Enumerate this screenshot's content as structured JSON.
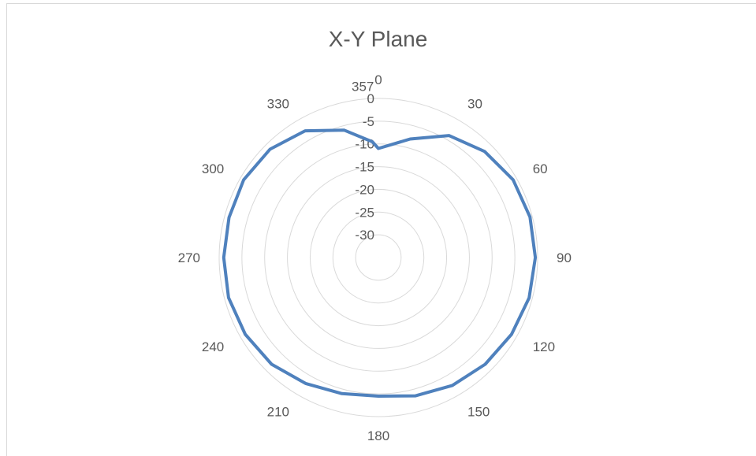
{
  "chart_data": {
    "type": "radar",
    "title": "X-Y Plane",
    "angle_labels": [
      "0",
      "30",
      "60",
      "90",
      "120",
      "150",
      "180",
      "210",
      "240",
      "270",
      "300",
      "330",
      "357"
    ],
    "angle_values": [
      0,
      30,
      60,
      90,
      120,
      150,
      180,
      210,
      240,
      270,
      300,
      330,
      357
    ],
    "radial_ticks": [
      "0",
      "-5",
      "-10",
      "-15",
      "-20",
      "-25",
      "-30"
    ],
    "radial_values": [
      0,
      -5,
      -10,
      -15,
      -20,
      -25,
      -30
    ],
    "r_range": [
      -35,
      0
    ],
    "grid": true,
    "series": [
      {
        "color": "#4f81bd",
        "points": [
          {
            "angle": 0,
            "value": -11.0
          },
          {
            "angle": 15,
            "value": -8.0
          },
          {
            "angle": 30,
            "value": -4.0
          },
          {
            "angle": 45,
            "value": -2.0
          },
          {
            "angle": 60,
            "value": -0.8
          },
          {
            "angle": 75,
            "value": -0.5
          },
          {
            "angle": 90,
            "value": -0.5
          },
          {
            "angle": 105,
            "value": -0.7
          },
          {
            "angle": 120,
            "value": -1.2
          },
          {
            "angle": 135,
            "value": -1.8
          },
          {
            "angle": 150,
            "value": -2.5
          },
          {
            "angle": 165,
            "value": -3.5
          },
          {
            "angle": 180,
            "value": -4.5
          },
          {
            "angle": 195,
            "value": -4.0
          },
          {
            "angle": 210,
            "value": -3.0
          },
          {
            "angle": 225,
            "value": -1.8
          },
          {
            "angle": 240,
            "value": -1.2
          },
          {
            "angle": 255,
            "value": -0.9
          },
          {
            "angle": 270,
            "value": -1.0
          },
          {
            "angle": 285,
            "value": -1.0
          },
          {
            "angle": 300,
            "value": -0.8
          },
          {
            "angle": 315,
            "value": -1.3
          },
          {
            "angle": 330,
            "value": -2.8
          },
          {
            "angle": 345,
            "value": -6.0
          },
          {
            "angle": 357,
            "value": -9.5
          }
        ]
      }
    ]
  }
}
